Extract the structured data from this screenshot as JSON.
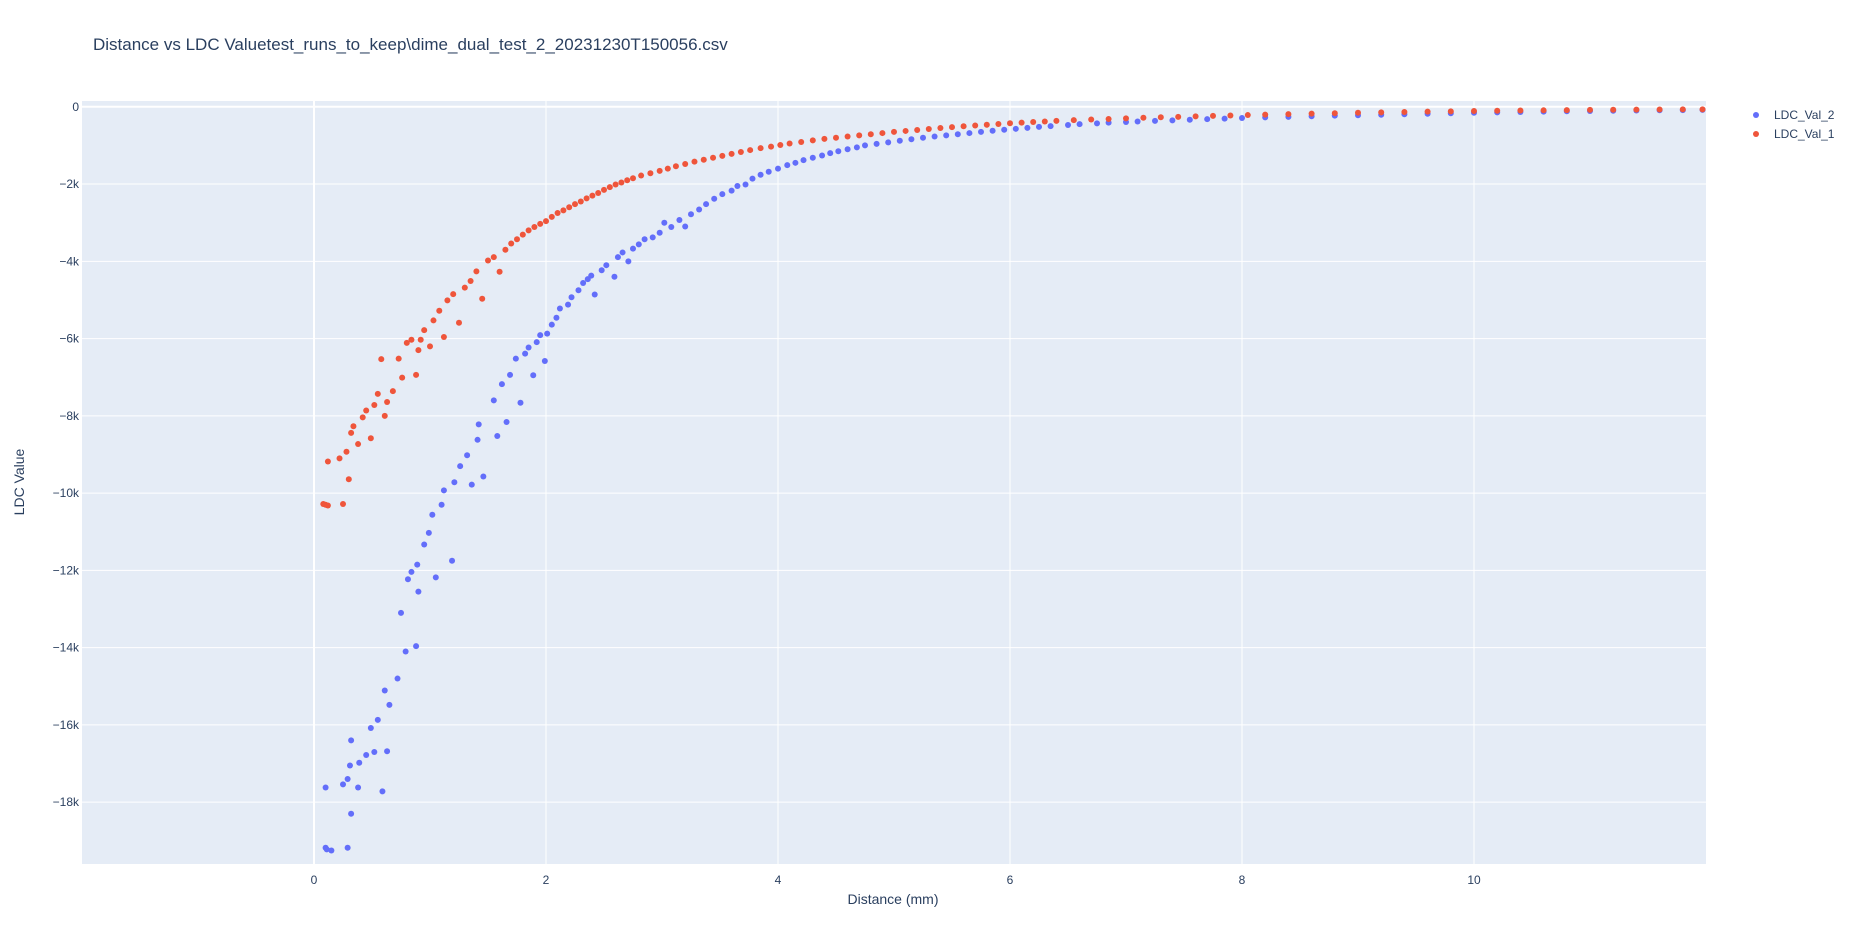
{
  "chart_data": {
    "type": "scatter",
    "title": "Distance vs LDC Valuetest_runs_to_keep\\dime_dual_test_2_20231230T150056.csv",
    "xlabel": "Distance (mm)",
    "ylabel": "LDC Value",
    "xlim": [
      -2.0,
      12.0
    ],
    "ylim": [
      -19600,
      150
    ],
    "x_ticks": [
      0,
      2,
      4,
      6,
      8,
      10
    ],
    "x_tick_labels": [
      "0",
      "2",
      "4",
      "6",
      "8",
      "10"
    ],
    "y_ticks": [
      0,
      -2000,
      -4000,
      -6000,
      -8000,
      -10000,
      -12000,
      -14000,
      -16000,
      -18000
    ],
    "y_tick_labels": [
      "0",
      "−2k",
      "−4k",
      "−6k",
      "−8k",
      "−10k",
      "−12k",
      "−14k",
      "−16k",
      "−18k"
    ],
    "grid": true,
    "legend_position": "top-right",
    "series": [
      {
        "name": "LDC_Val_2",
        "color": "#636efa",
        "x": [
          0.1,
          0.1,
          0.11,
          0.15,
          0.25,
          0.29,
          0.29,
          0.31,
          0.32,
          0.32,
          0.38,
          0.39,
          0.45,
          0.49,
          0.52,
          0.55,
          0.59,
          0.61,
          0.63,
          0.65,
          0.72,
          0.75,
          0.79,
          0.81,
          0.84,
          0.88,
          0.89,
          0.9,
          0.95,
          0.99,
          1.02,
          1.05,
          1.1,
          1.12,
          1.19,
          1.21,
          1.26,
          1.32,
          1.36,
          1.41,
          1.42,
          1.46,
          1.55,
          1.58,
          1.62,
          1.66,
          1.69,
          1.74,
          1.78,
          1.82,
          1.85,
          1.89,
          1.92,
          1.95,
          1.99,
          2.01,
          2.05,
          2.09,
          2.12,
          2.19,
          2.22,
          2.28,
          2.32,
          2.36,
          2.39,
          2.42,
          2.48,
          2.52,
          2.59,
          2.62,
          2.66,
          2.71,
          2.75,
          2.8,
          2.85,
          2.92,
          2.98,
          3.02,
          3.08,
          3.15,
          3.2,
          3.25,
          3.32,
          3.38,
          3.45,
          3.52,
          3.6,
          3.65,
          3.72,
          3.78,
          3.85,
          3.92,
          4.0,
          4.08,
          4.15,
          4.22,
          4.3,
          4.38,
          4.45,
          4.52,
          4.6,
          4.68,
          4.75,
          4.85,
          4.95,
          5.05,
          5.15,
          5.25,
          5.35,
          5.45,
          5.55,
          5.65,
          5.75,
          5.85,
          5.95,
          6.05,
          6.15,
          6.25,
          6.35,
          6.5,
          6.6,
          6.75,
          6.85,
          7.0,
          7.1,
          7.25,
          7.4,
          7.55,
          7.7,
          7.85,
          8.0,
          8.2,
          8.4,
          8.6,
          8.8,
          9.0,
          9.2,
          9.4,
          9.6,
          9.8,
          10.0,
          10.2,
          10.4,
          10.6,
          10.8,
          11.0,
          11.2,
          11.4,
          11.6,
          11.8,
          11.97
        ],
        "y": [
          -19180,
          -17620,
          -19220,
          -19250,
          -17540,
          -17400,
          -19180,
          -17050,
          -16400,
          -18300,
          -17620,
          -16980,
          -16780,
          -16080,
          -16700,
          -15870,
          -17720,
          -15110,
          -16680,
          -15480,
          -14800,
          -13100,
          -14100,
          -12230,
          -12040,
          -13960,
          -11850,
          -12550,
          -11330,
          -11030,
          -10560,
          -12180,
          -10300,
          -9930,
          -11750,
          -9720,
          -9300,
          -9020,
          -9780,
          -8620,
          -8220,
          -9570,
          -7600,
          -8520,
          -7180,
          -8160,
          -6940,
          -6520,
          -7660,
          -6390,
          -6230,
          -6950,
          -6090,
          -5910,
          -6580,
          -5870,
          -5640,
          -5460,
          -5220,
          -5120,
          -4930,
          -4750,
          -4560,
          -4460,
          -4370,
          -4860,
          -4230,
          -4100,
          -4400,
          -3890,
          -3770,
          -4000,
          -3670,
          -3560,
          -3430,
          -3380,
          -3260,
          -3000,
          -3110,
          -2930,
          -3100,
          -2780,
          -2660,
          -2520,
          -2380,
          -2260,
          -2170,
          -2050,
          -2010,
          -1860,
          -1760,
          -1680,
          -1600,
          -1510,
          -1450,
          -1380,
          -1320,
          -1260,
          -1200,
          -1150,
          -1100,
          -1050,
          -1000,
          -960,
          -920,
          -880,
          -840,
          -800,
          -770,
          -740,
          -710,
          -680,
          -650,
          -620,
          -595,
          -570,
          -545,
          -520,
          -500,
          -470,
          -450,
          -430,
          -410,
          -395,
          -380,
          -365,
          -350,
          -335,
          -320,
          -305,
          -290,
          -275,
          -260,
          -245,
          -230,
          -218,
          -205,
          -192,
          -180,
          -168,
          -155,
          -145,
          -135,
          -125,
          -115,
          -108,
          -102,
          -96,
          -90,
          -85,
          -80
        ]
      },
      {
        "name": "LDC_Val_1",
        "color": "#ef553b",
        "x": [
          0.08,
          0.1,
          0.12,
          0.12,
          0.22,
          0.25,
          0.28,
          0.3,
          0.32,
          0.34,
          0.38,
          0.42,
          0.45,
          0.49,
          0.52,
          0.55,
          0.58,
          0.61,
          0.63,
          0.68,
          0.73,
          0.76,
          0.8,
          0.84,
          0.88,
          0.9,
          0.92,
          0.95,
          1.0,
          1.03,
          1.08,
          1.12,
          1.15,
          1.2,
          1.25,
          1.3,
          1.35,
          1.4,
          1.45,
          1.5,
          1.55,
          1.6,
          1.65,
          1.7,
          1.75,
          1.8,
          1.85,
          1.9,
          1.95,
          2.0,
          2.05,
          2.1,
          2.15,
          2.2,
          2.25,
          2.3,
          2.35,
          2.4,
          2.45,
          2.5,
          2.55,
          2.6,
          2.65,
          2.7,
          2.75,
          2.82,
          2.9,
          2.98,
          3.05,
          3.12,
          3.2,
          3.28,
          3.36,
          3.44,
          3.52,
          3.6,
          3.68,
          3.76,
          3.85,
          3.94,
          4.02,
          4.1,
          4.2,
          4.3,
          4.4,
          4.5,
          4.6,
          4.7,
          4.8,
          4.9,
          5.0,
          5.1,
          5.2,
          5.3,
          5.4,
          5.5,
          5.6,
          5.7,
          5.8,
          5.9,
          6.0,
          6.1,
          6.2,
          6.3,
          6.4,
          6.55,
          6.7,
          6.85,
          7.0,
          7.15,
          7.3,
          7.45,
          7.6,
          7.75,
          7.9,
          8.05,
          8.2,
          8.4,
          8.6,
          8.8,
          9.0,
          9.2,
          9.4,
          9.6,
          9.8,
          10.0,
          10.2,
          10.4,
          10.6,
          10.8,
          11.0,
          11.2,
          11.4,
          11.6,
          11.8,
          11.97
        ],
        "y": [
          -10280,
          -10300,
          -9180,
          -10320,
          -9100,
          -10280,
          -8930,
          -9640,
          -8440,
          -8270,
          -8730,
          -8040,
          -7860,
          -8580,
          -7720,
          -7430,
          -6530,
          -8000,
          -7640,
          -7360,
          -6520,
          -7010,
          -6110,
          -6030,
          -6940,
          -6300,
          -6030,
          -5780,
          -6200,
          -5530,
          -5280,
          -5960,
          -5010,
          -4850,
          -5590,
          -4680,
          -4510,
          -4260,
          -4970,
          -3980,
          -3890,
          -4270,
          -3700,
          -3540,
          -3430,
          -3310,
          -3200,
          -3110,
          -3030,
          -2960,
          -2850,
          -2750,
          -2680,
          -2600,
          -2520,
          -2450,
          -2370,
          -2300,
          -2230,
          -2150,
          -2080,
          -2010,
          -1960,
          -1900,
          -1850,
          -1780,
          -1720,
          -1660,
          -1600,
          -1540,
          -1480,
          -1420,
          -1370,
          -1320,
          -1270,
          -1220,
          -1170,
          -1120,
          -1070,
          -1030,
          -990,
          -950,
          -910,
          -870,
          -830,
          -800,
          -770,
          -740,
          -710,
          -680,
          -650,
          -625,
          -600,
          -575,
          -550,
          -525,
          -505,
          -485,
          -465,
          -445,
          -425,
          -410,
          -395,
          -380,
          -365,
          -345,
          -330,
          -315,
          -300,
          -285,
          -272,
          -260,
          -248,
          -236,
          -225,
          -214,
          -203,
          -190,
          -178,
          -166,
          -155,
          -145,
          -135,
          -126,
          -118,
          -110,
          -103,
          -97,
          -91,
          -86,
          -81,
          -77,
          -73,
          -70,
          -68,
          -66
        ]
      }
    ]
  }
}
